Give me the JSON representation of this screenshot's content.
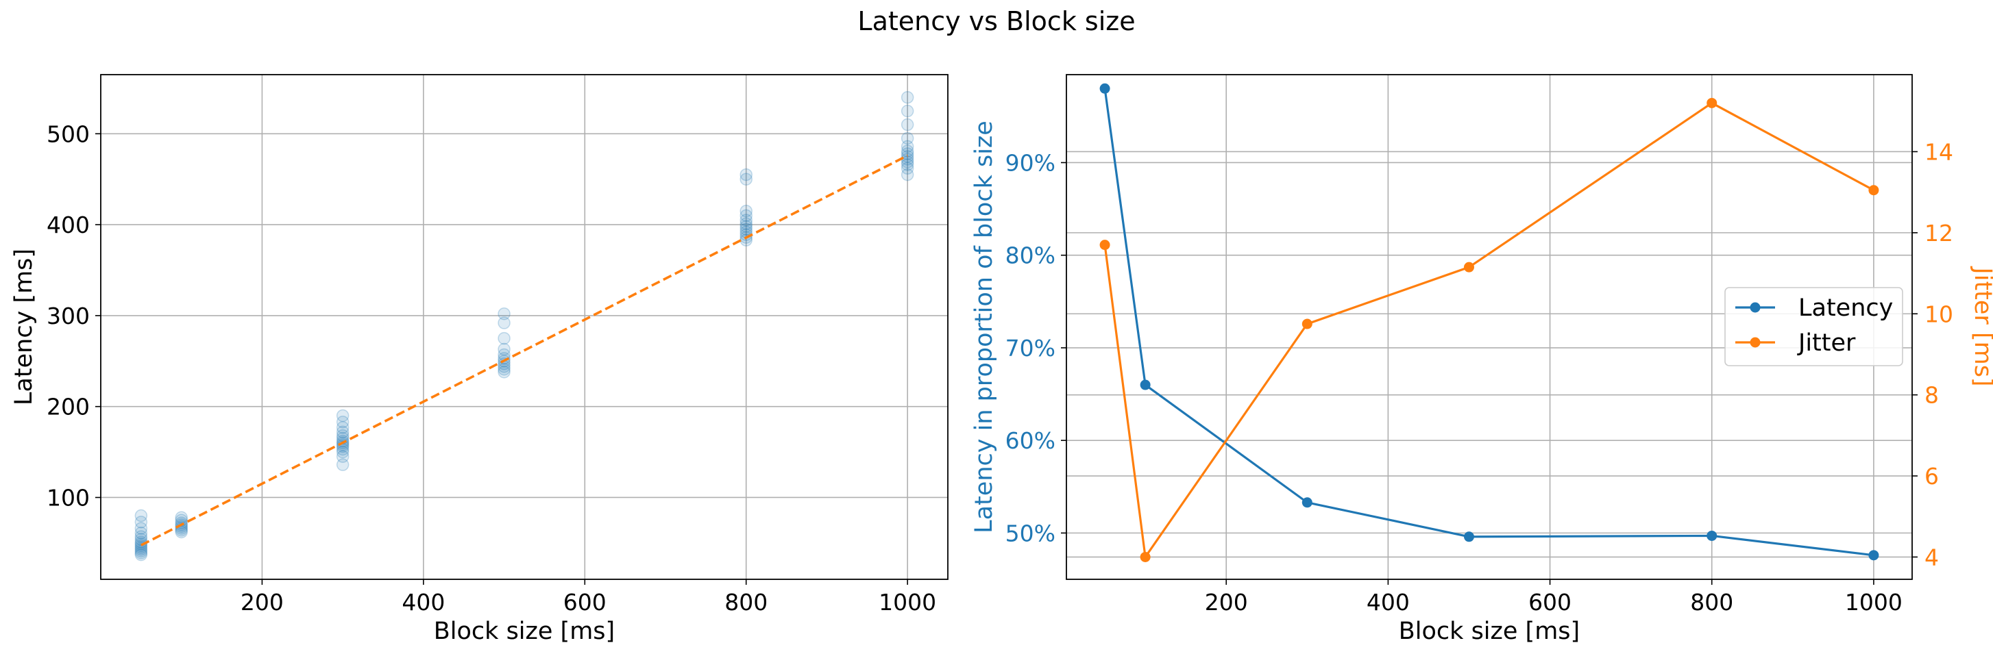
{
  "figure_title": "Latency vs Block size",
  "colors": {
    "latency": "#1f77b4",
    "jitter": "#ff7f0e",
    "grid": "#b0b0b0",
    "axes": "#000000"
  },
  "chart_data": [
    {
      "type": "scatter",
      "title": "",
      "xlabel": "Block size [ms]",
      "ylabel": "Latency [ms]",
      "xlim": [
        0,
        1050
      ],
      "ylim": [
        10,
        565
      ],
      "xticks": [
        200,
        400,
        600,
        800,
        1000
      ],
      "xtick_labels": [
        "200",
        "400",
        "600",
        "800",
        "1000"
      ],
      "yticks": [
        100,
        200,
        300,
        400,
        500
      ],
      "ytick_labels": [
        "100",
        "200",
        "300",
        "400",
        "500"
      ],
      "grid": true,
      "legend": "none",
      "series": [
        {
          "style": "scatter",
          "color": "#1f77b4",
          "opacity": 0.15,
          "points": [
            [
              50,
              37
            ],
            [
              50,
              39
            ],
            [
              50,
              41
            ],
            [
              50,
              43
            ],
            [
              50,
              45
            ],
            [
              50,
              47
            ],
            [
              50,
              49
            ],
            [
              50,
              51
            ],
            [
              50,
              54
            ],
            [
              50,
              57
            ],
            [
              50,
              61
            ],
            [
              50,
              66
            ],
            [
              50,
              73
            ],
            [
              50,
              80
            ],
            [
              100,
              62
            ],
            [
              100,
              64
            ],
            [
              100,
              66
            ],
            [
              100,
              68
            ],
            [
              100,
              70
            ],
            [
              100,
              72
            ],
            [
              100,
              75
            ],
            [
              100,
              78
            ],
            [
              300,
              136
            ],
            [
              300,
              145
            ],
            [
              300,
              150
            ],
            [
              300,
              153
            ],
            [
              300,
              156
            ],
            [
              300,
              158
            ],
            [
              300,
              160
            ],
            [
              300,
              162
            ],
            [
              300,
              165
            ],
            [
              300,
              168
            ],
            [
              300,
              172
            ],
            [
              300,
              177
            ],
            [
              300,
              183
            ],
            [
              300,
              190
            ],
            [
              500,
              238
            ],
            [
              500,
              241
            ],
            [
              500,
              244
            ],
            [
              500,
              247
            ],
            [
              500,
              250
            ],
            [
              500,
              253
            ],
            [
              500,
              257
            ],
            [
              500,
              263
            ],
            [
              500,
              275
            ],
            [
              500,
              292
            ],
            [
              500,
              302
            ],
            [
              800,
              383
            ],
            [
              800,
              386
            ],
            [
              800,
              389
            ],
            [
              800,
              392
            ],
            [
              800,
              395
            ],
            [
              800,
              398
            ],
            [
              800,
              401
            ],
            [
              800,
              405
            ],
            [
              800,
              410
            ],
            [
              800,
              415
            ],
            [
              800,
              450
            ],
            [
              800,
              455
            ],
            [
              1000,
              455
            ],
            [
              1000,
              462
            ],
            [
              1000,
              466
            ],
            [
              1000,
              469
            ],
            [
              1000,
              472
            ],
            [
              1000,
              475
            ],
            [
              1000,
              478
            ],
            [
              1000,
              481
            ],
            [
              1000,
              486
            ],
            [
              1000,
              495
            ],
            [
              1000,
              510
            ],
            [
              1000,
              525
            ],
            [
              1000,
              540
            ]
          ]
        },
        {
          "style": "dashed-line",
          "color": "#ff7f0e",
          "x": [
            50,
            1000
          ],
          "y": [
            47.5,
            476
          ]
        }
      ]
    },
    {
      "type": "line",
      "title": "",
      "xlabel": "Block size [ms]",
      "ylabel": "Latency in proportion of block size",
      "y2label": "Jitter [ms]",
      "xlim": [
        2.5,
        1047.5
      ],
      "ylim": [
        0.45,
        0.995
      ],
      "y2lim": [
        3.45,
        15.9
      ],
      "xticks": [
        200,
        400,
        600,
        800,
        1000
      ],
      "xtick_labels": [
        "200",
        "400",
        "600",
        "800",
        "1000"
      ],
      "yticks": [
        0.5,
        0.6,
        0.7,
        0.8,
        0.9
      ],
      "ytick_labels": [
        "50%",
        "60%",
        "70%",
        "80%",
        "90%"
      ],
      "y2ticks": [
        4,
        6,
        8,
        10,
        12,
        14
      ],
      "y2tick_labels": [
        "4",
        "6",
        "8",
        "10",
        "12",
        "14"
      ],
      "grid": true,
      "legend": "center-right",
      "categories": [
        50,
        100,
        300,
        500,
        800,
        1000
      ],
      "series": [
        {
          "name": "Latency",
          "axis": "left",
          "color": "#1f77b4",
          "values": [
            0.98,
            0.66,
            0.533,
            0.496,
            0.497,
            0.476
          ]
        },
        {
          "name": "Jitter",
          "axis": "right",
          "color": "#ff7f0e",
          "values": [
            11.7,
            4.0,
            9.75,
            11.15,
            15.2,
            13.05
          ]
        }
      ]
    }
  ]
}
